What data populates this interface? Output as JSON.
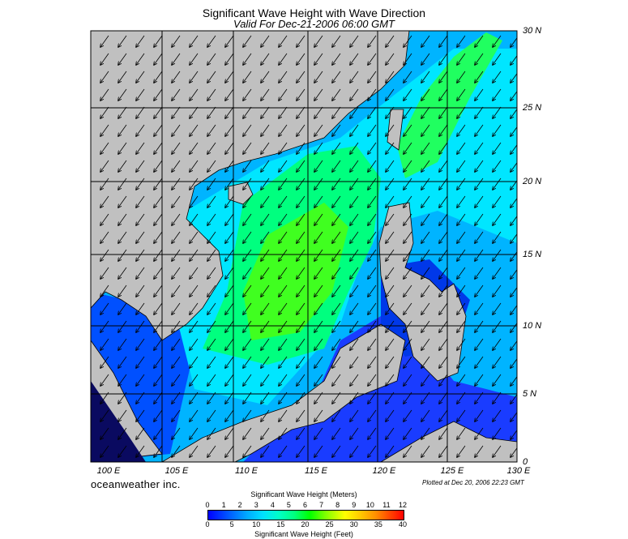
{
  "header": {
    "title": "Significant Wave Height with Wave Direction",
    "subtitle": "Valid For Dec-21-2006 06:00 GMT"
  },
  "map": {
    "lat_labels": [
      "30 N",
      "25 N",
      "20 N",
      "15 N",
      "10 N",
      "5 N",
      "0"
    ],
    "lon_labels": [
      "100 E",
      "105 E",
      "110 E",
      "115 E",
      "120 E",
      "125 E",
      "130 E"
    ],
    "lat_range": [
      0,
      30
    ],
    "lon_range": [
      100,
      130
    ],
    "land_color": "#c0c0c0",
    "grid": true,
    "wind_arrow_direction": "southwest"
  },
  "footer": {
    "brand": "oceanweather inc.",
    "plotted": "Plotted at Dec 20, 2006 22:23 GMT"
  },
  "legend": {
    "meters_title": "Significant Wave Height (Meters)",
    "feet_title": "Significant Wave Height (Feet)",
    "meters_ticks": [
      "0",
      "1",
      "2",
      "3",
      "4",
      "5",
      "6",
      "7",
      "8",
      "9",
      "10",
      "11",
      "12"
    ],
    "feet_ticks": [
      "0",
      "5",
      "10",
      "15",
      "20",
      "25",
      "30",
      "35",
      "40"
    ]
  }
}
